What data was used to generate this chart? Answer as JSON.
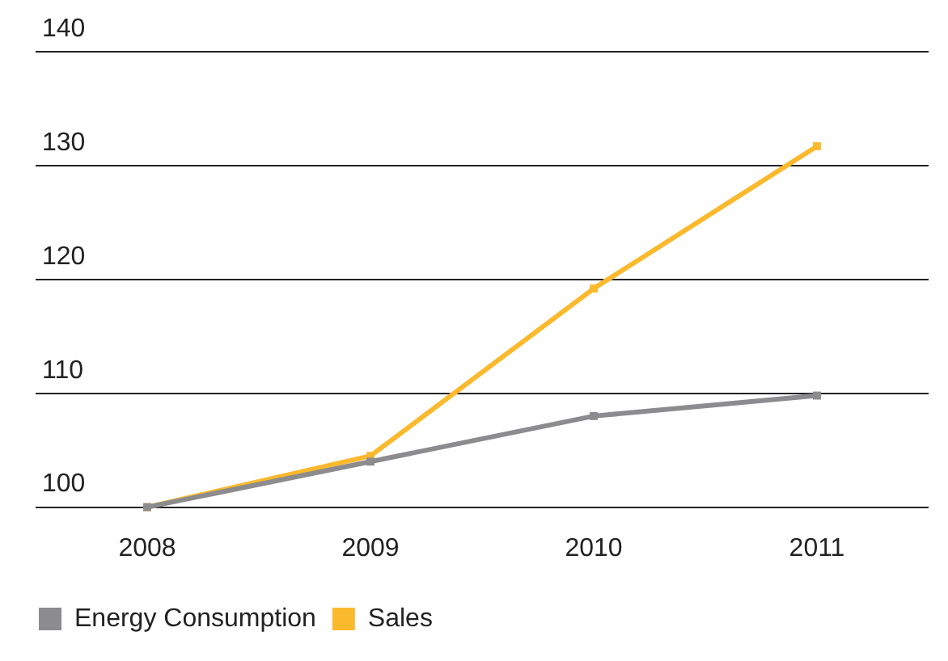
{
  "chart_data": {
    "type": "line",
    "categories": [
      "2008",
      "2009",
      "2010",
      "2011"
    ],
    "series": [
      {
        "name": "Energy Consumption",
        "color": "#8c8c8e",
        "values": [
          100,
          104,
          108,
          109.8
        ]
      },
      {
        "name": "Sales",
        "color": "#fbb92d",
        "values": [
          100,
          104.5,
          119.2,
          131.7
        ]
      }
    ],
    "ylim": [
      100,
      140
    ],
    "yticks": [
      100,
      110,
      120,
      130,
      140
    ],
    "grid": "y",
    "legend": "bottom left",
    "marker": "square",
    "line_style": "solid"
  }
}
